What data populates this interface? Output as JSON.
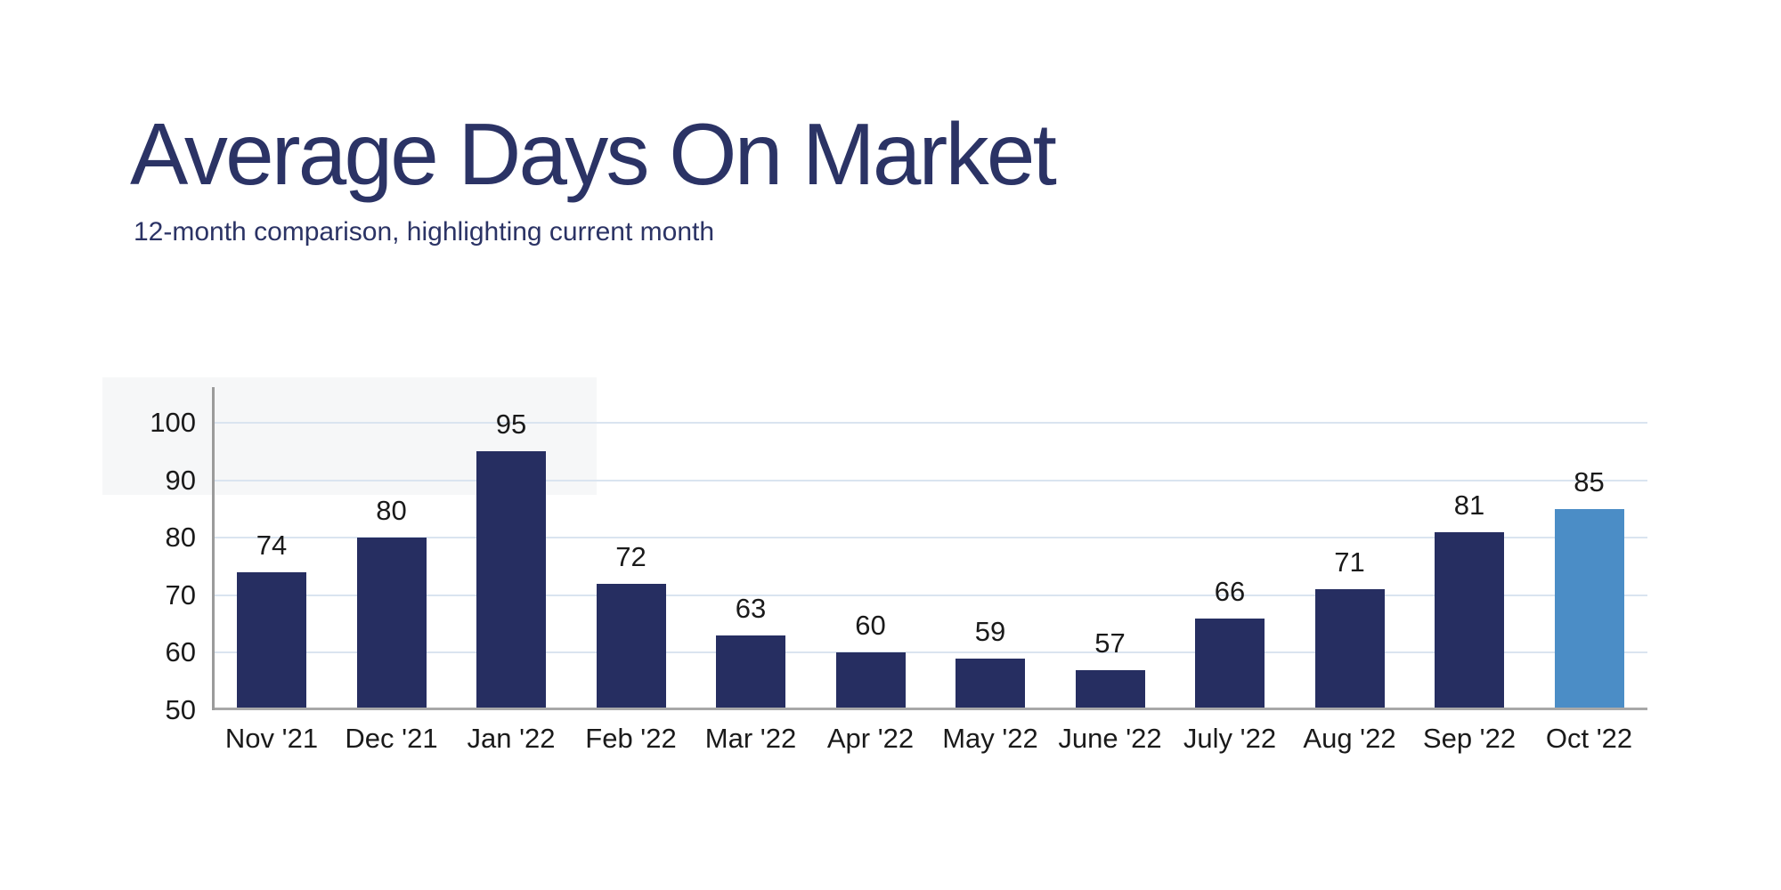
{
  "header": {
    "title_color": "#2b3365"
  },
  "chart_data": {
    "type": "bar",
    "title": "Average Days On Market",
    "subtitle": "12-month comparison, highlighting current month",
    "categories": [
      "Nov '21",
      "Dec '21",
      "Jan '22",
      "Feb '22",
      "Mar '22",
      "Apr '22",
      "May '22",
      "June '22",
      "July '22",
      "Aug '22",
      "Sep '22",
      "Oct '22"
    ],
    "values": [
      74,
      80,
      95,
      72,
      63,
      60,
      59,
      57,
      66,
      71,
      81,
      85
    ],
    "highlighted_index": 11,
    "highlighted_category": "Oct '22",
    "yticks": [
      50,
      60,
      70,
      80,
      90,
      100
    ],
    "ylim": [
      50,
      106
    ],
    "xlabel": "",
    "ylabel": "",
    "grid": true,
    "legend": "none",
    "show_data_labels": true,
    "bar_color": "#262e61",
    "highlight_color": "#4b8dc6",
    "gridline_color": "#dae4f0",
    "baseline_color": "#a8a8a8",
    "axis_line_color": "#9b9b9b",
    "label_color": "#1a1a1a"
  }
}
